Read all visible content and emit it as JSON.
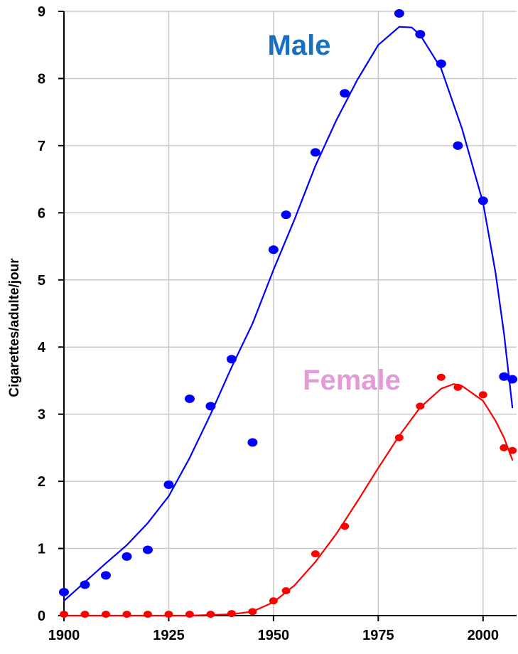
{
  "chart_data": {
    "type": "scatter",
    "title": "",
    "xlabel": "",
    "ylabel": "Cigarettes/adulte/jour",
    "xlim": [
      1900,
      2008
    ],
    "ylim": [
      0,
      9
    ],
    "x_ticks": [
      "1900",
      "1925",
      "1950",
      "1975",
      "2000"
    ],
    "y_ticks": [
      "0",
      "1",
      "2",
      "3",
      "4",
      "5",
      "6",
      "7",
      "8",
      "9"
    ],
    "grid": true,
    "series": [
      {
        "name": "Male",
        "color": "#0000ff",
        "label_color": "#1a6fbf",
        "points": [
          [
            1900,
            0.35
          ],
          [
            1905,
            0.46
          ],
          [
            1910,
            0.6
          ],
          [
            1915,
            0.88
          ],
          [
            1920,
            0.98
          ],
          [
            1925,
            1.95
          ],
          [
            1930,
            3.23
          ],
          [
            1935,
            3.12
          ],
          [
            1940,
            3.82
          ],
          [
            1945,
            2.58
          ],
          [
            1950,
            5.45
          ],
          [
            1953,
            5.97
          ],
          [
            1960,
            6.9
          ],
          [
            1967,
            7.78
          ],
          [
            1980,
            8.97
          ],
          [
            1985,
            8.66
          ],
          [
            1990,
            8.22
          ],
          [
            1994,
            7.0
          ],
          [
            2000,
            6.18
          ],
          [
            2005,
            3.56
          ],
          [
            2007,
            3.52
          ]
        ],
        "curve": [
          [
            1900,
            0.22
          ],
          [
            1905,
            0.5
          ],
          [
            1910,
            0.78
          ],
          [
            1915,
            1.05
          ],
          [
            1920,
            1.38
          ],
          [
            1925,
            1.78
          ],
          [
            1930,
            2.35
          ],
          [
            1935,
            3.0
          ],
          [
            1940,
            3.7
          ],
          [
            1945,
            4.35
          ],
          [
            1950,
            5.15
          ],
          [
            1955,
            5.9
          ],
          [
            1960,
            6.7
          ],
          [
            1965,
            7.38
          ],
          [
            1970,
            7.98
          ],
          [
            1975,
            8.5
          ],
          [
            1980,
            8.77
          ],
          [
            1983,
            8.76
          ],
          [
            1985,
            8.65
          ],
          [
            1990,
            8.15
          ],
          [
            1995,
            7.25
          ],
          [
            2000,
            6.15
          ],
          [
            2003,
            5.1
          ],
          [
            2005,
            4.2
          ],
          [
            2007,
            3.1
          ]
        ]
      },
      {
        "name": "Female",
        "color": "#ff0000",
        "label_color": "#e39ad6",
        "points": [
          [
            1900,
            0.02
          ],
          [
            1905,
            0.02
          ],
          [
            1910,
            0.02
          ],
          [
            1915,
            0.02
          ],
          [
            1920,
            0.02
          ],
          [
            1925,
            0.02
          ],
          [
            1930,
            0.02
          ],
          [
            1935,
            0.02
          ],
          [
            1940,
            0.03
          ],
          [
            1945,
            0.06
          ],
          [
            1950,
            0.22
          ],
          [
            1953,
            0.37
          ],
          [
            1960,
            0.92
          ],
          [
            1967,
            1.33
          ],
          [
            1980,
            2.65
          ],
          [
            1985,
            3.12
          ],
          [
            1990,
            3.55
          ],
          [
            1994,
            3.4
          ],
          [
            2000,
            3.29
          ],
          [
            2005,
            2.5
          ],
          [
            2007,
            2.46
          ]
        ],
        "curve": [
          [
            1900,
            0.0
          ],
          [
            1930,
            0.0
          ],
          [
            1940,
            0.02
          ],
          [
            1945,
            0.06
          ],
          [
            1950,
            0.2
          ],
          [
            1955,
            0.45
          ],
          [
            1960,
            0.8
          ],
          [
            1965,
            1.22
          ],
          [
            1970,
            1.7
          ],
          [
            1975,
            2.2
          ],
          [
            1980,
            2.68
          ],
          [
            1985,
            3.1
          ],
          [
            1990,
            3.38
          ],
          [
            1993,
            3.45
          ],
          [
            1995,
            3.42
          ],
          [
            2000,
            3.2
          ],
          [
            2003,
            2.9
          ],
          [
            2005,
            2.65
          ],
          [
            2007,
            2.32
          ]
        ]
      }
    ]
  }
}
